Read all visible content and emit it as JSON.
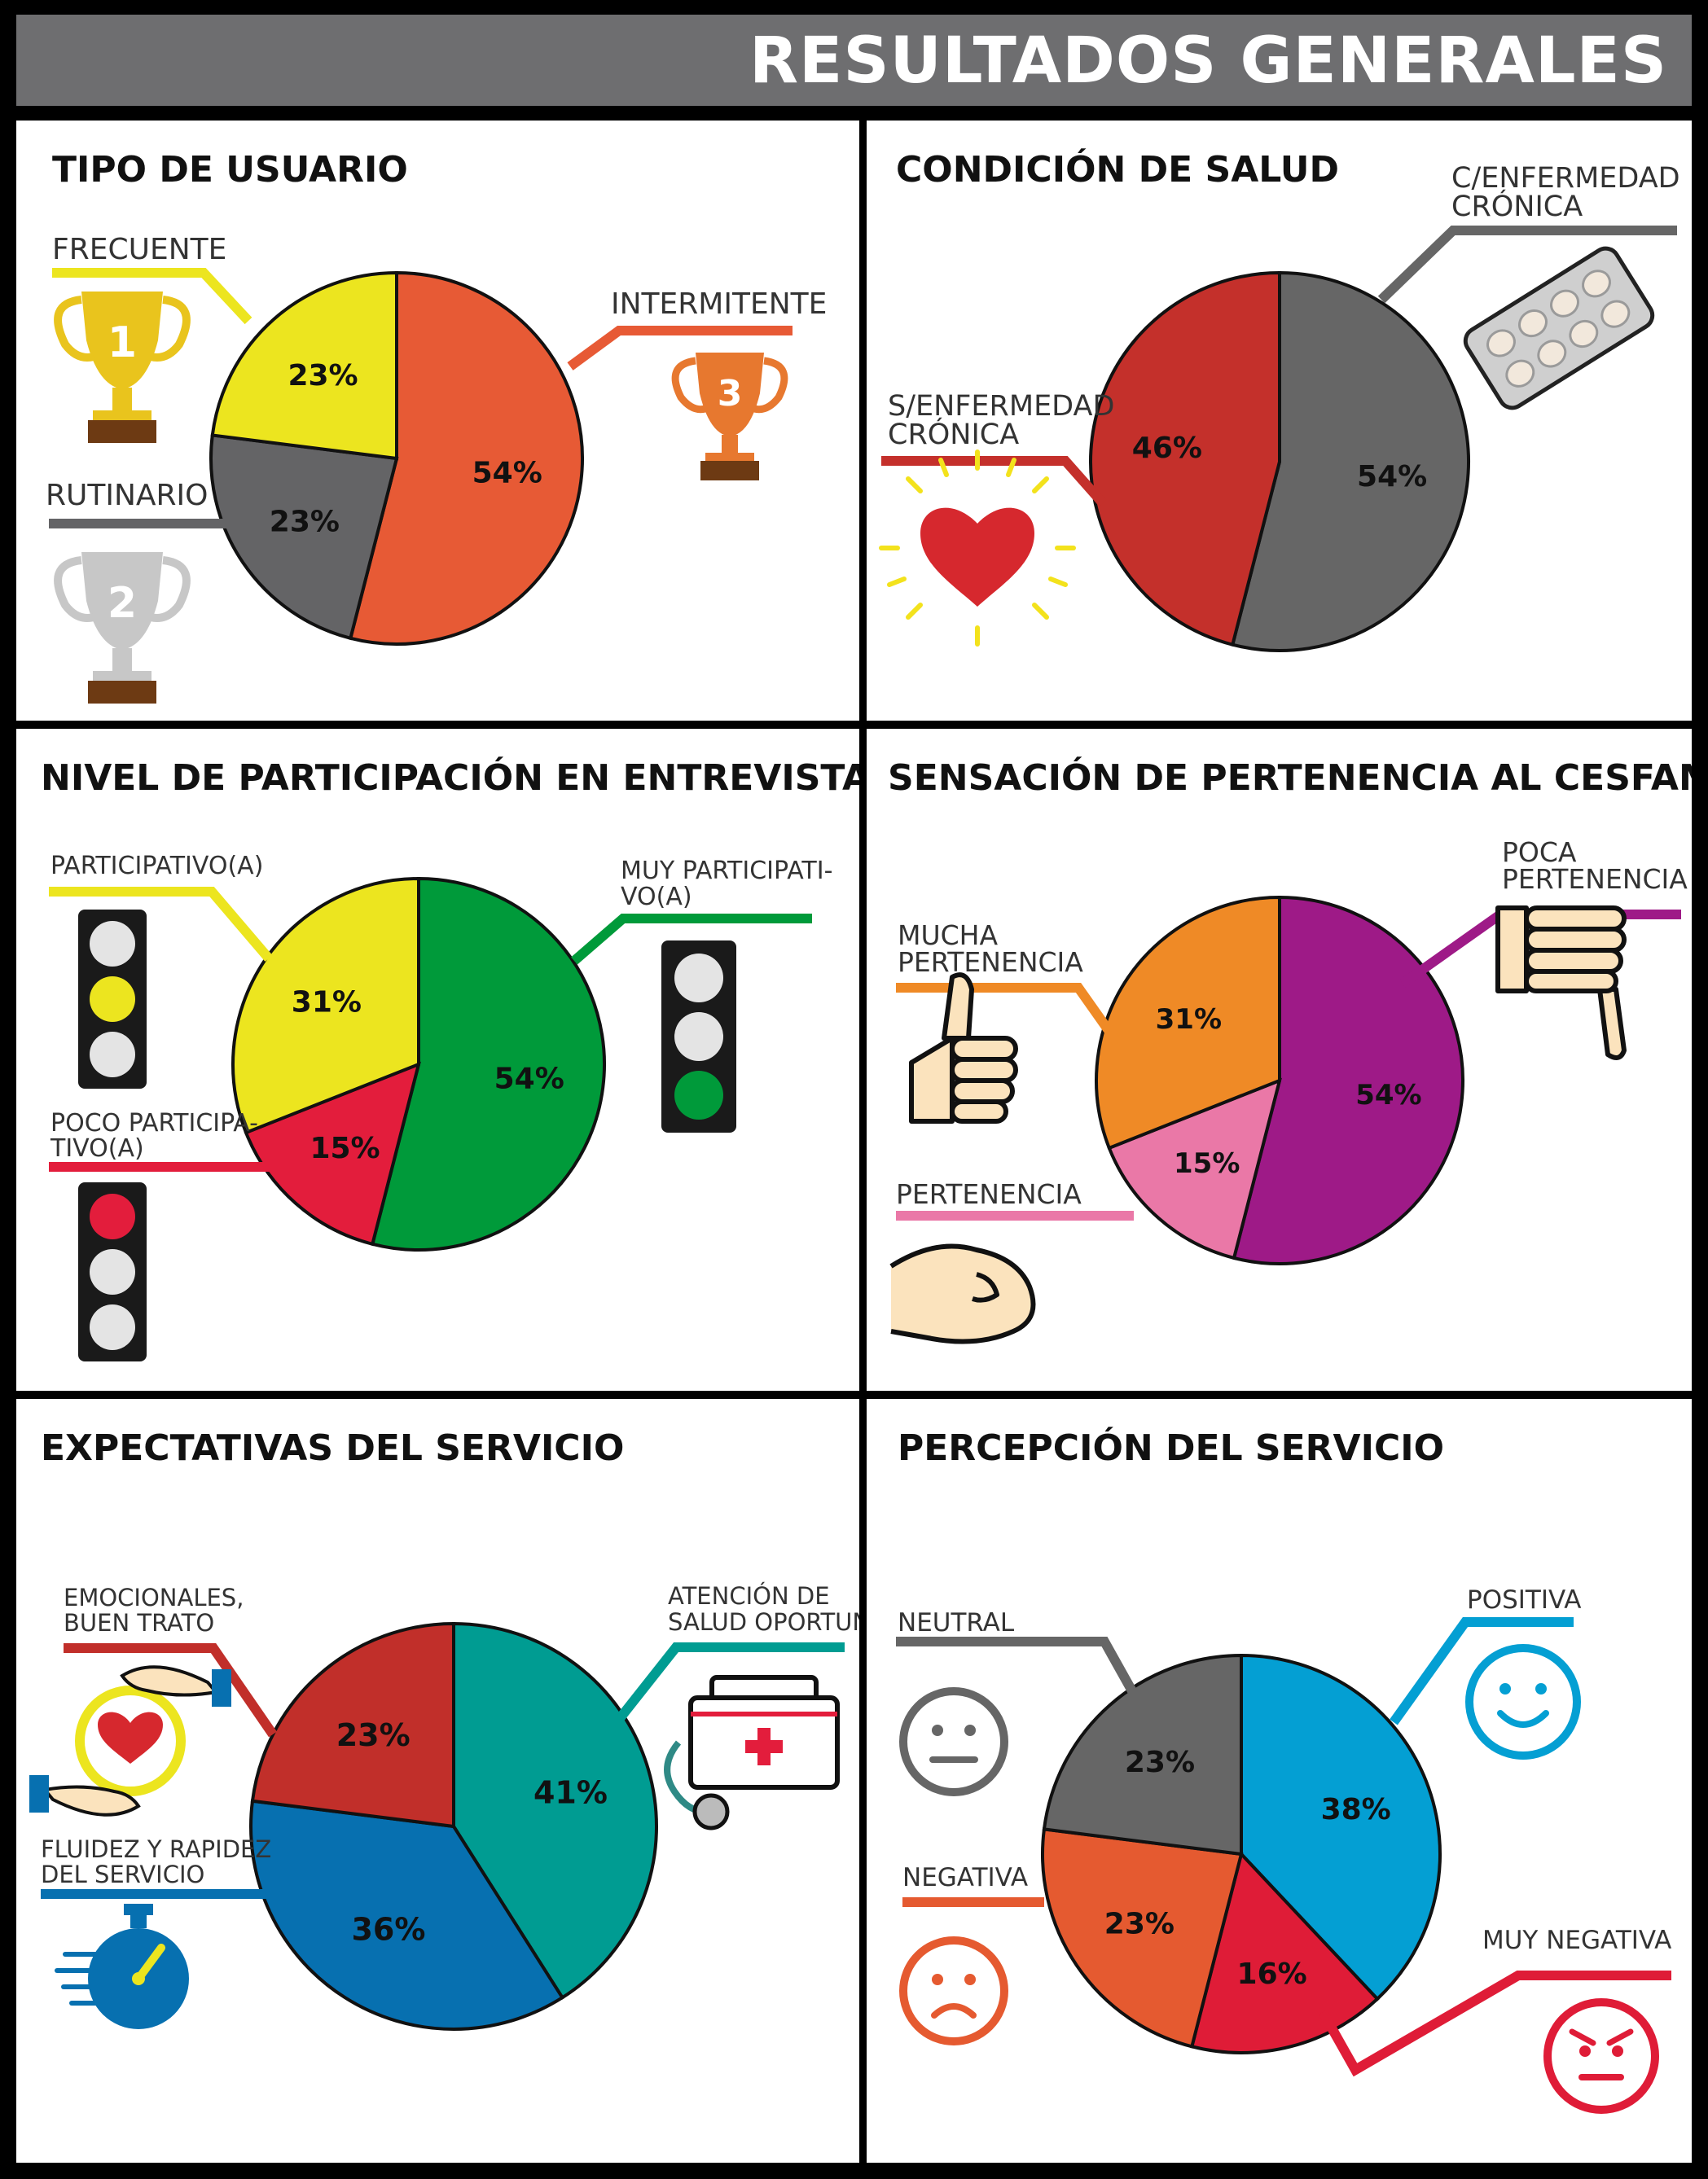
{
  "page_title": "RESULTADOS GENERALES",
  "chart_data": [
    {
      "type": "pie",
      "title": "TIPO DE USUARIO",
      "categories": [
        "INTERMITENTE",
        "RUTINARIO",
        "FRECUENTE"
      ],
      "values": [
        54,
        23,
        23
      ],
      "value_labels": [
        "54%",
        "23%",
        "23%"
      ],
      "colors": [
        "#e75a35",
        "#646466",
        "#ece51f"
      ],
      "icons": [
        "trophy-third-icon",
        "trophy-second-icon",
        "trophy-first-icon"
      ],
      "trophy_numbers": [
        "3",
        "2",
        "1"
      ]
    },
    {
      "type": "pie",
      "title": "CONDICIÓN DE SALUD",
      "categories": [
        "C/ENFERMEDAD CRÓNICA",
        "S/ENFERMEDAD CRÓNICA"
      ],
      "values": [
        54,
        46
      ],
      "value_labels": [
        "54%",
        "46%"
      ],
      "colors": [
        "#666666",
        "#c4302b"
      ],
      "icons": [
        "pill-pack-icon",
        "heart-icon"
      ]
    },
    {
      "type": "pie",
      "title": "NIVEL DE PARTICIPACIÓN EN ENTREVISTA",
      "categories": [
        "MUY PARTICIPATI-VO(A)",
        "POCO PARTICIPA-TIVO(A)",
        "PARTICIPATIVO(A)"
      ],
      "values": [
        54,
        15,
        31
      ],
      "value_labels": [
        "54%",
        "15%",
        "31%"
      ],
      "colors": [
        "#009a3a",
        "#e31d3c",
        "#ece51f"
      ],
      "icons": [
        "traffic-light-green-icon",
        "traffic-light-red-icon",
        "traffic-light-yellow-icon"
      ]
    },
    {
      "type": "pie",
      "title": "SENSACIÓN DE PERTENENCIA AL CESFAM",
      "categories": [
        "POCA PERTENENCIA",
        "PERTENENCIA",
        "MUCHA PERTENENCIA"
      ],
      "values": [
        54,
        15,
        31
      ],
      "value_labels": [
        "54%",
        "15%",
        "31%"
      ],
      "colors": [
        "#9e1a87",
        "#ea78a7",
        "#ef8a26"
      ],
      "icons": [
        "thumbs-down-icon",
        "fist-icon",
        "thumbs-up-icon"
      ]
    },
    {
      "type": "pie",
      "title": "EXPECTATIVAS DEL SERVICIO",
      "categories": [
        "ATENCIÓN DE SALUD OPORTUNA",
        "FLUIDEZ Y RAPIDEZ DEL SERVICIO",
        "EMOCIONALES, BUEN TRATO"
      ],
      "values": [
        41,
        36,
        23
      ],
      "value_labels": [
        "41%",
        "36%",
        "23%"
      ],
      "colors": [
        "#009c92",
        "#0770b0",
        "#c12f2a"
      ],
      "icons": [
        "medical-kit-icon",
        "stopwatch-icon",
        "caring-hands-icon"
      ]
    },
    {
      "type": "pie",
      "title": "PERCEPCIÓN DEL SERVICIO",
      "categories": [
        "POSITIVA",
        "MUY NEGATIVA",
        "NEGATIVA",
        "NEUTRAL"
      ],
      "values": [
        38,
        16,
        23,
        23
      ],
      "value_labels": [
        "38%",
        "16%",
        "23%",
        "23%"
      ],
      "colors": [
        "#049fd3",
        "#df1c37",
        "#e55a30",
        "#666666"
      ],
      "icons": [
        "happy-face-icon",
        "angry-face-icon",
        "sad-face-icon",
        "neutral-face-icon"
      ]
    }
  ]
}
